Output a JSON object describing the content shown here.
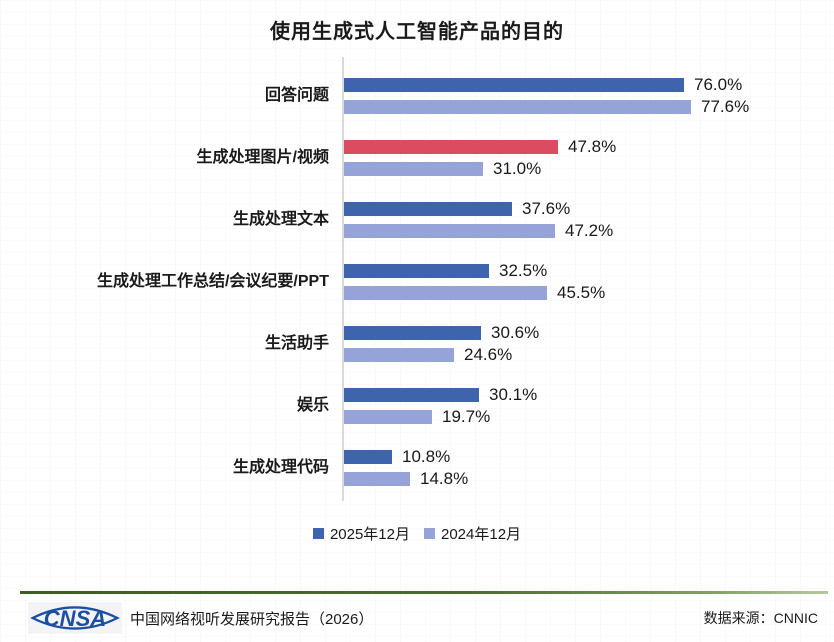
{
  "title": "使用生成式人工智能产品的目的",
  "chart_data": {
    "type": "bar",
    "orientation": "horizontal",
    "title": "使用生成式人工智能产品的目的",
    "categories": [
      "回答问题",
      "生成处理图片/视频",
      "生成处理文本",
      "生成处理工作总结/会议纪要/PPT",
      "生活助手",
      "娱乐",
      "生成处理代码"
    ],
    "series": [
      {
        "name": "2025年12月",
        "color": "#3E64AE",
        "values": [
          76.0,
          47.8,
          37.6,
          32.5,
          30.6,
          30.1,
          10.8
        ]
      },
      {
        "name": "2024年12月",
        "color": "#95A3D8",
        "values": [
          77.6,
          31.0,
          47.2,
          45.5,
          24.6,
          19.7,
          14.8
        ]
      }
    ],
    "highlight": {
      "category_index": 1,
      "series_index": 0,
      "color": "#DC4C60"
    },
    "value_suffix": "%",
    "xlim": [
      0,
      100
    ],
    "axis_color": "#D9D9D9",
    "grid": false,
    "legend_position": "bottom"
  },
  "legend": {
    "items": [
      {
        "label": "2025年12月",
        "color": "#3E64AE"
      },
      {
        "label": "2024年12月",
        "color": "#95A3D8"
      }
    ]
  },
  "footer": {
    "logo_text": "CNSA",
    "logo_color": "#1D4FA1",
    "report": "中国网络视听发展研究报告（2026）",
    "source": "数据来源：CNNIC"
  }
}
